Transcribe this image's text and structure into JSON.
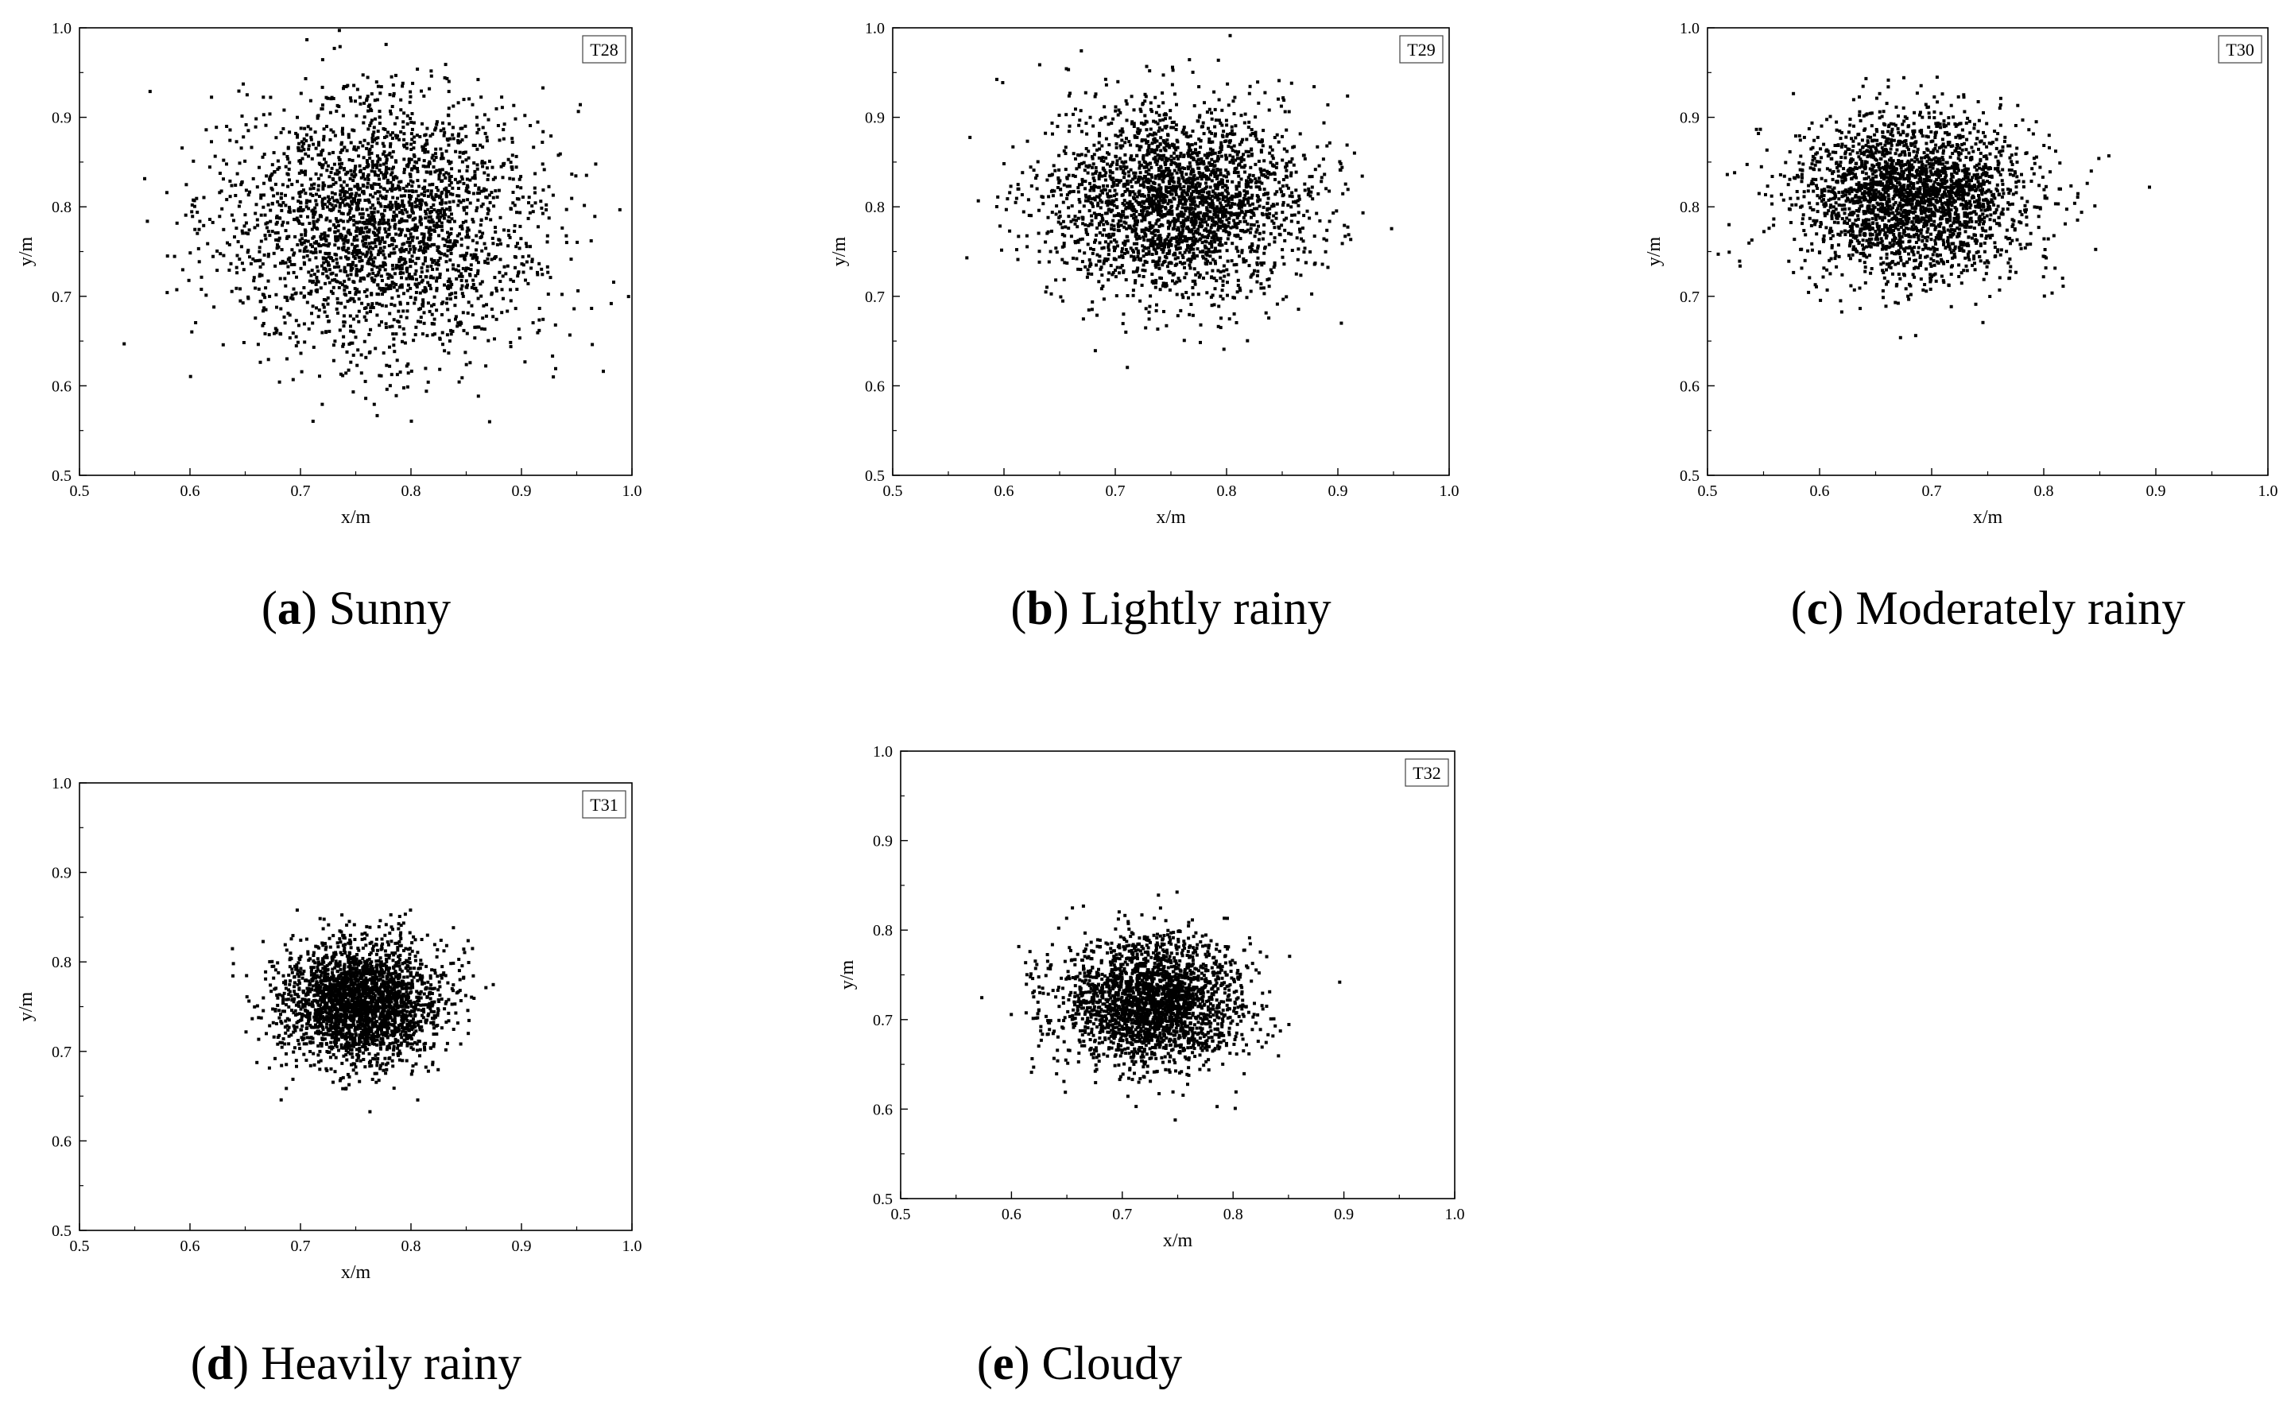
{
  "chart_data": [
    {
      "type": "scatter",
      "tag": "T28",
      "caption_letter": "a",
      "caption_text": "Sunny",
      "xlabel": "x/m",
      "ylabel": "y/m",
      "xlim": [
        0.5,
        1.0
      ],
      "ylim": [
        0.5,
        1.0
      ],
      "xticks": [
        "0.5",
        "0.6",
        "0.7",
        "0.8",
        "0.9",
        "1.0"
      ],
      "yticks": [
        "0.5",
        "0.6",
        "0.7",
        "0.8",
        "0.9",
        "1.0"
      ],
      "grid": false,
      "series": [
        {
          "center": [
            0.775,
            0.78
          ],
          "spread": [
            0.072,
            0.072
          ],
          "n": 2600
        }
      ]
    },
    {
      "type": "scatter",
      "tag": "T29",
      "caption_letter": "b",
      "caption_text": "Lightly rainy",
      "xlabel": "x/m",
      "ylabel": "y/m",
      "xlim": [
        0.5,
        1.0
      ],
      "ylim": [
        0.5,
        1.0
      ],
      "xticks": [
        "0.5",
        "0.6",
        "0.7",
        "0.8",
        "0.9",
        "1.0"
      ],
      "yticks": [
        "0.5",
        "0.6",
        "0.7",
        "0.8",
        "0.9",
        "1.0"
      ],
      "grid": false,
      "series": [
        {
          "center": [
            0.755,
            0.805
          ],
          "spread": [
            0.058,
            0.052
          ],
          "n": 2600
        }
      ]
    },
    {
      "type": "scatter",
      "tag": "T30",
      "caption_letter": "c",
      "caption_text": "Moderately rainy",
      "xlabel": "x/m",
      "ylabel": "y/m",
      "xlim": [
        0.5,
        1.0
      ],
      "ylim": [
        0.5,
        1.0
      ],
      "xticks": [
        "0.5",
        "0.6",
        "0.7",
        "0.8",
        "0.9",
        "1.0"
      ],
      "yticks": [
        "0.5",
        "0.6",
        "0.7",
        "0.8",
        "0.9",
        "1.0"
      ],
      "grid": false,
      "series": [
        {
          "center": [
            0.685,
            0.81
          ],
          "spread": [
            0.052,
            0.045
          ],
          "n": 2600
        }
      ]
    },
    {
      "type": "scatter",
      "tag": "T31",
      "caption_letter": "d",
      "caption_text": "Heavily rainy",
      "xlabel": "x/m",
      "ylabel": "y/m",
      "xlim": [
        0.5,
        1.0
      ],
      "ylim": [
        0.5,
        1.0
      ],
      "xticks": [
        "0.5",
        "0.6",
        "0.7",
        "0.8",
        "0.9",
        "1.0"
      ],
      "yticks": [
        "0.5",
        "0.6",
        "0.7",
        "0.8",
        "0.9",
        "1.0"
      ],
      "grid": false,
      "series": [
        {
          "center": [
            0.755,
            0.755
          ],
          "spread": [
            0.036,
            0.034
          ],
          "n": 2600
        }
      ]
    },
    {
      "type": "scatter",
      "tag": "T32",
      "caption_letter": "e",
      "caption_text": "Cloudy",
      "xlabel": "x/m",
      "ylabel": "y/m",
      "xlim": [
        0.5,
        1.0
      ],
      "ylim": [
        0.5,
        1.0
      ],
      "xticks": [
        "0.5",
        "0.6",
        "0.7",
        "0.8",
        "0.9",
        "1.0"
      ],
      "yticks": [
        "0.5",
        "0.6",
        "0.7",
        "0.8",
        "0.9",
        "1.0"
      ],
      "grid": false,
      "series": [
        {
          "center": [
            0.725,
            0.72
          ],
          "spread": [
            0.042,
            0.035
          ],
          "n": 2400
        }
      ]
    }
  ]
}
